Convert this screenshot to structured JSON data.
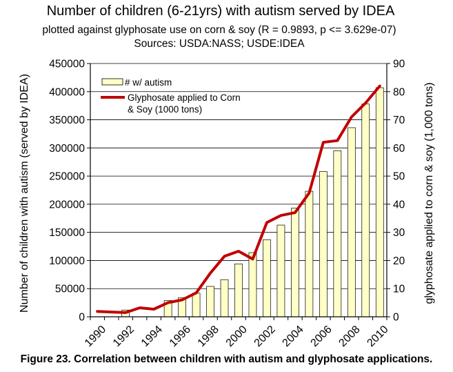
{
  "chart_data": {
    "type": "bar",
    "title": "Number of children (6-21yrs) with autism served by IDEA",
    "subtitle": "plotted against glyphosate use on corn & soy (R = 0.9893, p <= 3.629e-07)",
    "sources": "Sources: USDA:NASS; USDE:IDEA",
    "xlabel": "",
    "ylabel": "Number of children with autism (served by IDEA)",
    "y2label": "glyphosate applied to corn & soy (1,000 tons)",
    "ylim": [
      0,
      450000
    ],
    "y2lim": [
      0,
      90
    ],
    "grid": true,
    "legend_position": "top-left",
    "x": [
      1990,
      1991,
      1992,
      1993,
      1994,
      1995,
      1996,
      1997,
      1998,
      1999,
      2000,
      2001,
      2002,
      2003,
      2004,
      2005,
      2006,
      2007,
      2008,
      2009,
      2010
    ],
    "x_tick_labels": [
      "1990",
      "1992",
      "1994",
      "1996",
      "1998",
      "2000",
      "2002",
      "2004",
      "2006",
      "2008",
      "2010"
    ],
    "y_tick_labels": [
      "0",
      "50000",
      "100000",
      "150000",
      "200000",
      "250000",
      "300000",
      "350000",
      "400000",
      "450000"
    ],
    "y2_tick_labels": [
      "0",
      "10",
      "20",
      "30",
      "40",
      "50",
      "60",
      "70",
      "80",
      "90"
    ],
    "series": [
      {
        "name": "# w/ autism",
        "type": "bar",
        "axis": "left",
        "color": "#ffffc6",
        "values": [
          null,
          null,
          12000,
          null,
          null,
          29000,
          34000,
          42000,
          54000,
          66000,
          94000,
          114000,
          137000,
          163000,
          193000,
          223000,
          258000,
          295000,
          336000,
          378000,
          407000
        ]
      },
      {
        "name": "Glyphosate applied to Corn & Soy (1000 tons)",
        "type": "line",
        "axis": "right",
        "color": "#c00000",
        "values": [
          1.9,
          1.7,
          1.5,
          3.2,
          2.7,
          5.0,
          6.0,
          8.5,
          15.5,
          21.5,
          23.3,
          20.5,
          33.5,
          36.0,
          37.0,
          44.0,
          62.0,
          62.6,
          71.0,
          76.0,
          82.0
        ]
      }
    ]
  },
  "caption": "Figure 23. Correlation between children with autism and glyphosate applications."
}
